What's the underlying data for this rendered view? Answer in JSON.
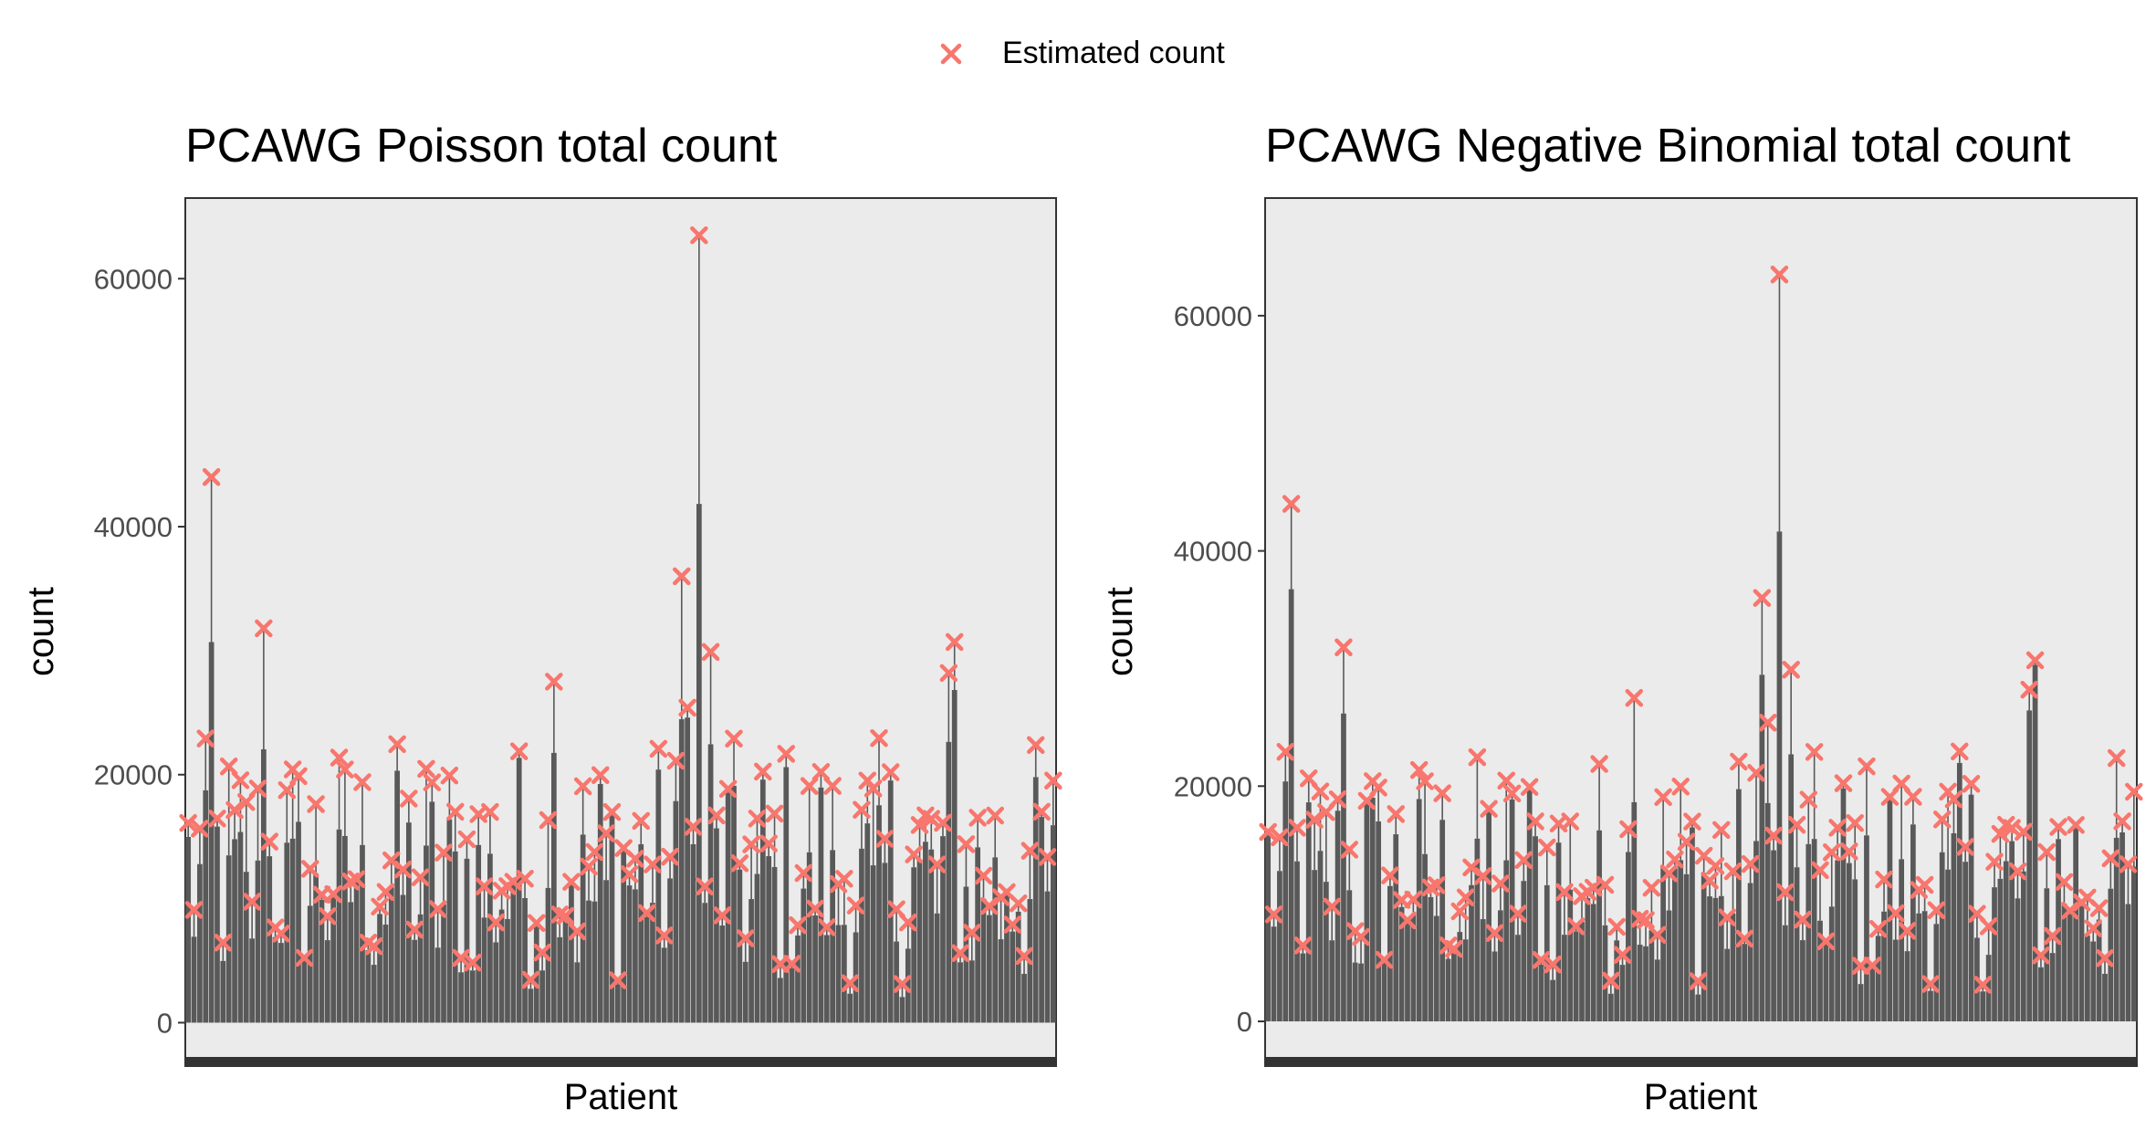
{
  "legend": {
    "label": "Estimated count",
    "marker_color": "#F8766D",
    "placement": "top-center"
  },
  "chart_data": [
    {
      "type": "bar",
      "title": "PCAWG Poisson total count",
      "xlabel": "Patient",
      "ylabel": "count",
      "ylim": [
        -3500,
        66500
      ],
      "yticks": [
        0,
        20000,
        40000,
        60000
      ],
      "x_tick_labels": "none",
      "bar_color": "#595959",
      "panel_background": "#EBEBEB",
      "grid": false,
      "highlights": [
        {
          "patient": 4,
          "count": 44000
        },
        {
          "patient": 13,
          "count": 31800
        },
        {
          "patient": 63,
          "count": 27500
        },
        {
          "patient": 85,
          "count": 36000
        },
        {
          "patient": 86,
          "count": 25400
        },
        {
          "patient": 88,
          "count": 63500
        },
        {
          "patient": 90,
          "count": 29900
        },
        {
          "patient": 131,
          "count": 28200
        },
        {
          "patient": 132,
          "count": 30700
        }
      ],
      "series": [
        {
          "name": "Estimated count",
          "marker": "x",
          "color": "#F8766D",
          "n_patients": 150
        }
      ]
    },
    {
      "type": "bar",
      "title": "PCAWG Negative Binomial total count",
      "xlabel": "Patient",
      "ylabel": "count",
      "ylim": [
        -3800,
        70000
      ],
      "yticks": [
        0,
        20000,
        40000,
        60000
      ],
      "x_tick_labels": "none",
      "bar_color": "#595959",
      "panel_background": "#EBEBEB",
      "grid": false,
      "highlights": [
        {
          "patient": 4,
          "count": 44000
        },
        {
          "patient": 13,
          "count": 31800
        },
        {
          "patient": 63,
          "count": 27500
        },
        {
          "patient": 85,
          "count": 36000
        },
        {
          "patient": 86,
          "count": 25400
        },
        {
          "patient": 88,
          "count": 63500
        },
        {
          "patient": 90,
          "count": 29900
        },
        {
          "patient": 131,
          "count": 28200
        },
        {
          "patient": 132,
          "count": 30700
        }
      ],
      "series": [
        {
          "name": "Estimated count",
          "marker": "x",
          "color": "#F8766D",
          "n_patients": 150
        }
      ]
    }
  ]
}
